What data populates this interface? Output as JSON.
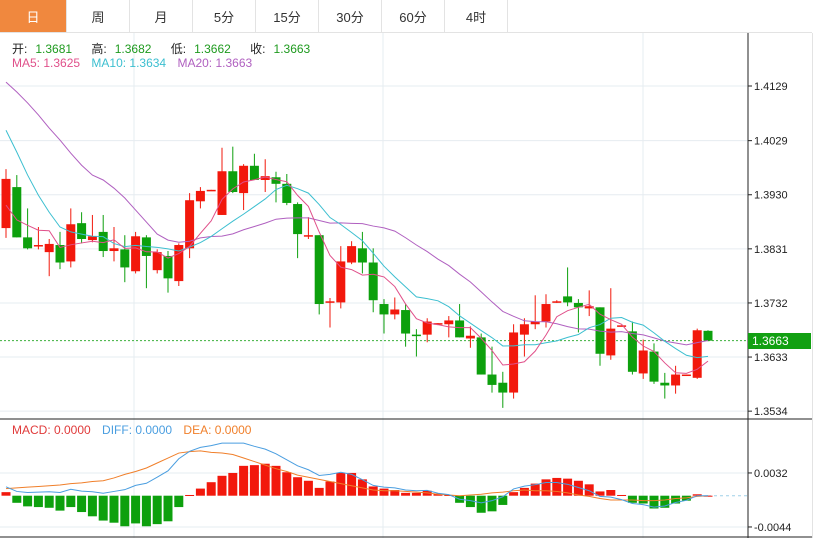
{
  "tabs": [
    {
      "label": "日",
      "active": true
    },
    {
      "label": "周"
    },
    {
      "label": "月"
    },
    {
      "label": "5分"
    },
    {
      "label": "15分"
    },
    {
      "label": "30分"
    },
    {
      "label": "60分"
    },
    {
      "label": "4时"
    }
  ],
  "ohlc_info": {
    "open_label": "开:",
    "open": "1.3681",
    "high_label": "高:",
    "high": "1.3682",
    "low_label": "低:",
    "low": "1.3662",
    "close_label": "收:",
    "close": "1.3663"
  },
  "ma_info": {
    "ma5": "MA5: 1.3625",
    "ma10": "MA10: 1.3634",
    "ma20": "MA20: 1.3663"
  },
  "macd_info": {
    "macd": "MACD: 0.0000",
    "diff": "DIFF: 0.0000",
    "dea": "DEA: 0.0000"
  },
  "current_price": "1.3663",
  "colors": {
    "up": "#f2180c",
    "down": "#0da00d",
    "ma5": "#e0508a",
    "ma10": "#3cbfd0",
    "ma20": "#b060c0",
    "diff": "#4a9ee0",
    "dea": "#f07f2a",
    "active_tab": "#f0883e"
  },
  "chart_data": {
    "type": "candlestick",
    "price_axis": {
      "ticks": [
        "1.4129",
        "1.4029",
        "1.3930",
        "1.3831",
        "1.3732",
        "1.3633",
        "1.3534"
      ]
    },
    "macd_axis": {
      "ticks": [
        "0.0032",
        "-0.0044"
      ]
    },
    "candles": [
      [
        1.3869,
        1.3977,
        1.3851,
        1.3959
      ],
      [
        1.3944,
        1.3966,
        1.3852,
        1.3852
      ],
      [
        1.3852,
        1.3905,
        1.383,
        1.3832
      ],
      [
        1.3836,
        1.3871,
        1.383,
        1.3838
      ],
      [
        1.3825,
        1.3849,
        1.3781,
        1.384
      ],
      [
        1.3838,
        1.3862,
        1.3794,
        1.3806
      ],
      [
        1.3808,
        1.3905,
        1.3797,
        1.3876
      ],
      [
        1.3878,
        1.3898,
        1.3841,
        1.3849
      ],
      [
        1.3847,
        1.3893,
        1.3843,
        1.3854
      ],
      [
        1.3862,
        1.3893,
        1.3816,
        1.3827
      ],
      [
        1.3827,
        1.3871,
        1.3808,
        1.3832
      ],
      [
        1.383,
        1.3856,
        1.377,
        1.3797
      ],
      [
        1.379,
        1.3862,
        1.3786,
        1.3854
      ],
      [
        1.3852,
        1.3856,
        1.3759,
        1.3818
      ],
      [
        1.3792,
        1.383,
        1.3786,
        1.3825
      ],
      [
        1.3818,
        1.3827,
        1.3751,
        1.3777
      ],
      [
        1.3772,
        1.3841,
        1.3763,
        1.3838
      ],
      [
        1.3832,
        1.3933,
        1.3814,
        1.392
      ],
      [
        1.3918,
        1.3944,
        1.3905,
        1.3937
      ],
      [
        1.3937,
        1.3939,
        1.3937,
        1.3939
      ],
      [
        1.3893,
        1.4016,
        1.3893,
        1.3973
      ],
      [
        1.3973,
        1.4018,
        1.3933,
        1.3935
      ],
      [
        1.3933,
        1.3986,
        1.3902,
        1.3983
      ],
      [
        1.3983,
        1.4005,
        1.3957,
        1.3957
      ],
      [
        1.3957,
        1.3995,
        1.3935,
        1.3964
      ],
      [
        1.3962,
        1.3972,
        1.3916,
        1.395
      ],
      [
        1.395,
        1.3968,
        1.3911,
        1.3915
      ],
      [
        1.3913,
        1.3916,
        1.3814,
        1.3858
      ],
      [
        1.3854,
        1.3889,
        1.3849,
        1.3856
      ],
      [
        1.3856,
        1.3856,
        1.3711,
        1.373
      ],
      [
        1.3733,
        1.3741,
        1.3687,
        1.3735
      ],
      [
        1.3733,
        1.3836,
        1.3722,
        1.3808
      ],
      [
        1.3806,
        1.3845,
        1.3803,
        1.3836
      ],
      [
        1.3832,
        1.3862,
        1.3786,
        1.3806
      ],
      [
        1.3806,
        1.3832,
        1.3715,
        1.3737
      ],
      [
        1.373,
        1.3739,
        1.3676,
        1.3711
      ],
      [
        1.3711,
        1.3742,
        1.3702,
        1.372
      ],
      [
        1.3719,
        1.373,
        1.3652,
        1.3676
      ],
      [
        1.3674,
        1.3684,
        1.3634,
        1.3672
      ],
      [
        1.3674,
        1.3704,
        1.366,
        1.3698
      ],
      [
        1.3693,
        1.3695,
        1.3693,
        1.3695
      ],
      [
        1.3693,
        1.3708,
        1.3669,
        1.37
      ],
      [
        1.37,
        1.373,
        1.3669,
        1.3669
      ],
      [
        1.3667,
        1.3689,
        1.365,
        1.3672
      ],
      [
        1.3669,
        1.3676,
        1.3601,
        1.3601
      ],
      [
        1.3601,
        1.3652,
        1.3568,
        1.3582
      ],
      [
        1.3586,
        1.3606,
        1.354,
        1.3568
      ],
      [
        1.3568,
        1.3693,
        1.3557,
        1.3678
      ],
      [
        1.3674,
        1.3704,
        1.3634,
        1.3693
      ],
      [
        1.3693,
        1.3746,
        1.3684,
        1.3698
      ],
      [
        1.3698,
        1.3748,
        1.3687,
        1.373
      ],
      [
        1.3733,
        1.3737,
        1.3732,
        1.3735
      ],
      [
        1.3744,
        1.3797,
        1.3726,
        1.3733
      ],
      [
        1.3732,
        1.3739,
        1.3678,
        1.3724
      ],
      [
        1.3722,
        1.3755,
        1.3708,
        1.3726
      ],
      [
        1.3724,
        1.3724,
        1.3617,
        1.3639
      ],
      [
        1.3636,
        1.3759,
        1.3628,
        1.3685
      ],
      [
        1.3689,
        1.3691,
        1.3689,
        1.3691
      ],
      [
        1.368,
        1.3698,
        1.3601,
        1.3606
      ],
      [
        1.3603,
        1.3665,
        1.3593,
        1.3645
      ],
      [
        1.3643,
        1.3658,
        1.3584,
        1.3588
      ],
      [
        1.3586,
        1.3604,
        1.3557,
        1.3581
      ],
      [
        1.3581,
        1.3617,
        1.3566,
        1.3601
      ],
      [
        1.3599,
        1.3601,
        1.3599,
        1.3601
      ],
      [
        1.3595,
        1.3685,
        1.3593,
        1.3682
      ],
      [
        1.3681,
        1.3682,
        1.3662,
        1.3663
      ]
    ],
    "ma5_prefix": [
      1.3911,
      1.3884,
      1.3874,
      1.3865
    ],
    "ma10_prefix": [
      1.4048,
      1.4008,
      1.3966,
      1.3929,
      1.3898,
      1.3871,
      1.3862,
      1.3858,
      1.3854
    ],
    "ma20_prefix": [
      1.4136,
      1.4118,
      1.4098,
      1.4076,
      1.4052,
      1.403,
      1.4006,
      1.3984,
      1.3966,
      1.3957,
      1.3942,
      1.3924,
      1.3902,
      1.388,
      1.3858,
      1.3847,
      1.3843,
      1.3845,
      1.3851
    ],
    "macd_hist": [
      0.0005,
      -0.001,
      -0.0015,
      -0.0016,
      -0.0017,
      -0.0021,
      -0.0016,
      -0.0023,
      -0.0029,
      -0.0035,
      -0.0038,
      -0.0043,
      -0.0039,
      -0.0043,
      -0.004,
      -0.0036,
      -0.0016,
      0.0001,
      0.001,
      0.0019,
      0.0028,
      0.0032,
      0.0042,
      0.0043,
      0.0045,
      0.0042,
      0.0033,
      0.0026,
      0.0021,
      0.0011,
      0.002,
      0.0032,
      0.0032,
      0.0023,
      0.0013,
      0.001,
      0.0008,
      0.0004,
      0.0004,
      0.0007,
      0.0003,
      0.0001,
      -0.001,
      -0.0016,
      -0.0024,
      -0.0022,
      -0.0013,
      0.0005,
      0.0011,
      0.0017,
      0.0023,
      0.0025,
      0.0024,
      0.0021,
      0.0016,
      0.0006,
      0.0008,
      0.0001,
      -0.001,
      -0.0011,
      -0.0018,
      -0.0017,
      -0.0011,
      -0.0007,
      0.0002,
      0.0
    ],
    "dea": [
      0.001,
      0.0011,
      0.0012,
      0.0013,
      0.0014,
      0.0015,
      0.0017,
      0.0018,
      0.002,
      0.0021,
      0.0025,
      0.003,
      0.0034,
      0.0039,
      0.0046,
      0.0053,
      0.006,
      0.0062,
      0.0063,
      0.0061,
      0.006,
      0.0058,
      0.0053,
      0.0048,
      0.0043,
      0.0038,
      0.0034,
      0.0029,
      0.0026,
      0.0023,
      0.002,
      0.0017,
      0.0014,
      0.0011,
      0.0008,
      0.0007,
      0.0007,
      0.0006,
      0.0005,
      0.0004,
      0.0002,
      0.0001,
      0.0,
      0.0001,
      0.0002,
      0.0004,
      0.0005,
      0.0007,
      0.0008,
      0.0007,
      0.0007,
      0.0006,
      0.0004,
      0.0001,
      -0.0001,
      -0.0004,
      -0.0006,
      -0.0006,
      -0.0006,
      -0.0007,
      -0.0007,
      -0.0006,
      -0.0004,
      -0.0003,
      -0.0001,
      0.0
    ]
  }
}
